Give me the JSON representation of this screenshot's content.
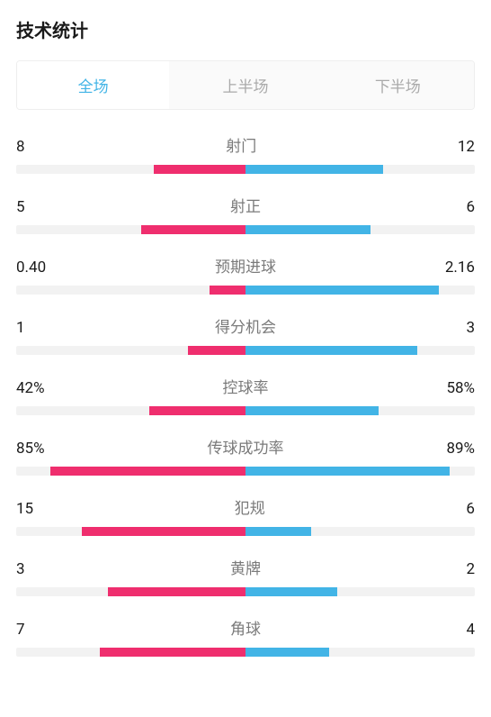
{
  "title": "技术统计",
  "tabs": [
    {
      "label": "全场",
      "active": true
    },
    {
      "label": "上半场",
      "active": false
    },
    {
      "label": "下半场",
      "active": false
    }
  ],
  "colors": {
    "left": "#ef2e6e",
    "right": "#42b4e6",
    "track": "#f2f2f2",
    "tab_active_text": "#42b4e6",
    "tab_inactive_text": "#aaaaaa",
    "stat_name": "#7a7a7a",
    "value_text": "#1a1a1a",
    "title_text": "#1a1a1a"
  },
  "bar_half_max_pct": 50,
  "stats": [
    {
      "name": "射门",
      "left_label": "8",
      "right_label": "12",
      "left_pct": 20,
      "right_pct": 30
    },
    {
      "name": "射正",
      "left_label": "5",
      "right_label": "6",
      "left_pct": 22.7,
      "right_pct": 27.3
    },
    {
      "name": "预期进球",
      "left_label": "0.40",
      "right_label": "2.16",
      "left_pct": 7.8,
      "right_pct": 42.2
    },
    {
      "name": "得分机会",
      "left_label": "1",
      "right_label": "3",
      "left_pct": 12.5,
      "right_pct": 37.5
    },
    {
      "name": "控球率",
      "left_label": "42%",
      "right_label": "58%",
      "left_pct": 21,
      "right_pct": 29
    },
    {
      "name": "传球成功率",
      "left_label": "85%",
      "right_label": "89%",
      "left_pct": 42.5,
      "right_pct": 44.5
    },
    {
      "name": "犯规",
      "left_label": "15",
      "right_label": "6",
      "left_pct": 35.7,
      "right_pct": 14.3
    },
    {
      "name": "黄牌",
      "left_label": "3",
      "right_label": "2",
      "left_pct": 30,
      "right_pct": 20
    },
    {
      "name": "角球",
      "left_label": "7",
      "right_label": "4",
      "left_pct": 31.8,
      "right_pct": 18.2
    }
  ]
}
